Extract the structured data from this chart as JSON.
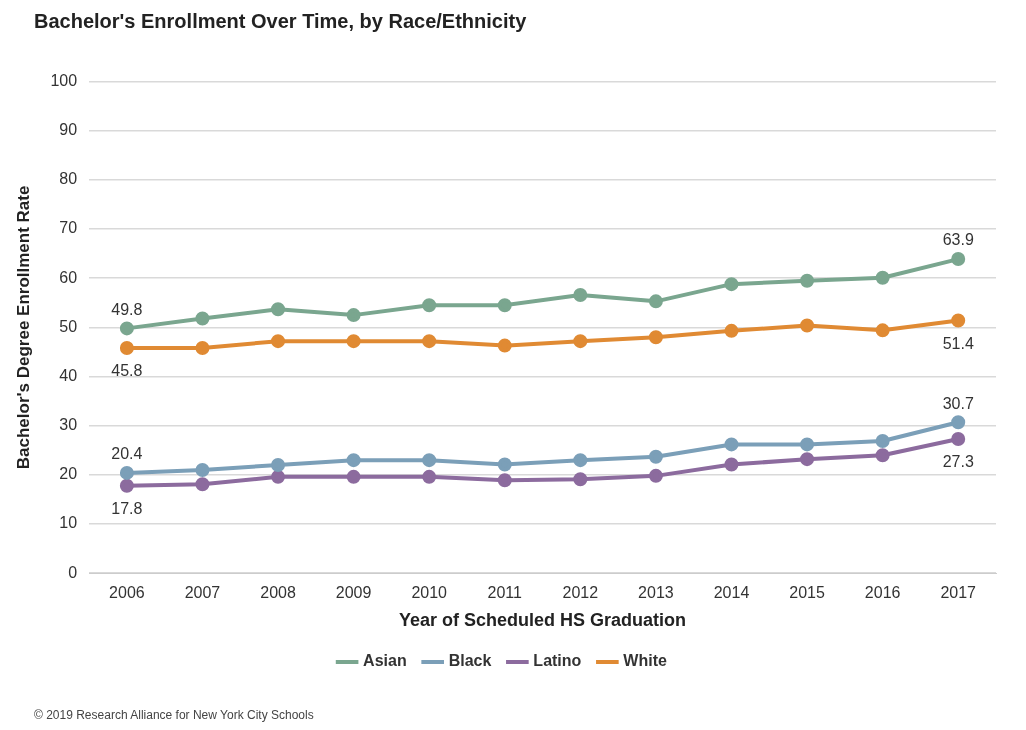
{
  "chart_data": {
    "type": "line",
    "title": "Bachelor's Enrollment Over Time, by Race/Ethnicity",
    "xlabel": "Year of Scheduled HS Graduation",
    "ylabel": "Bachelor's Degree Enrollment Rate",
    "categories": [
      "2006",
      "2007",
      "2008",
      "2009",
      "2010",
      "2011",
      "2012",
      "2013",
      "2014",
      "2015",
      "2016",
      "2017"
    ],
    "series": [
      {
        "name": "Asian",
        "color": "#7aa68f",
        "values": [
          49.8,
          51.8,
          53.7,
          52.5,
          54.5,
          54.5,
          56.6,
          55.3,
          58.8,
          59.5,
          60.1,
          63.9
        ],
        "value_labels": [
          "49.8",
          null,
          null,
          null,
          null,
          null,
          null,
          null,
          null,
          null,
          null,
          "63.9"
        ]
      },
      {
        "name": "Black",
        "color": "#7b9fb8",
        "values": [
          20.4,
          21.0,
          22.0,
          23.0,
          23.0,
          22.1,
          23.0,
          23.7,
          26.2,
          26.2,
          26.9,
          30.7
        ],
        "value_labels": [
          "20.4",
          null,
          null,
          null,
          null,
          null,
          null,
          null,
          null,
          null,
          null,
          "30.7"
        ]
      },
      {
        "name": "Latino",
        "color": "#8c6b9e",
        "values": [
          17.8,
          18.1,
          19.6,
          19.6,
          19.6,
          18.9,
          19.1,
          19.8,
          22.1,
          23.2,
          24.0,
          27.3
        ],
        "value_labels": [
          "17.8",
          null,
          null,
          null,
          null,
          null,
          null,
          null,
          null,
          null,
          null,
          "27.3"
        ]
      },
      {
        "name": "White",
        "color": "#e08a33",
        "values": [
          45.8,
          45.8,
          47.2,
          47.2,
          47.2,
          46.3,
          47.2,
          48.0,
          49.3,
          50.4,
          49.4,
          51.4
        ],
        "value_labels": [
          "45.8",
          null,
          null,
          null,
          null,
          null,
          null,
          null,
          null,
          null,
          null,
          "51.4"
        ]
      }
    ],
    "ylim": [
      0,
      100
    ],
    "yticks": [
      0,
      10,
      20,
      30,
      40,
      50,
      60,
      70,
      80,
      90,
      100
    ],
    "grid": "y",
    "legend": "bottom",
    "marker": "circle",
    "line_style": "solid",
    "annotations": [
      "© 2019 Research Alliance for New York City Schools"
    ]
  }
}
